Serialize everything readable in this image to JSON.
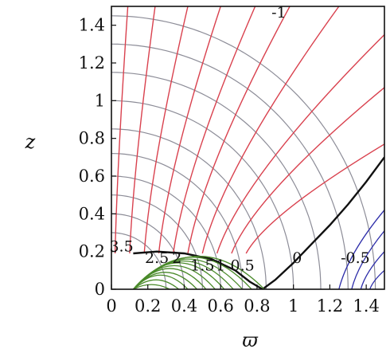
{
  "chart_data": {
    "type": "line",
    "xlabel": "ϖ",
    "ylabel": "z",
    "xlim": [
      0,
      1.5
    ],
    "ylim": [
      0,
      1.5
    ],
    "x_ticks": [
      {
        "value": 0,
        "label": "0"
      },
      {
        "value": 0.2,
        "label": "0.2"
      },
      {
        "value": 0.4,
        "label": "0.4"
      },
      {
        "value": 0.6,
        "label": "0.6"
      },
      {
        "value": 0.8,
        "label": "0.8"
      },
      {
        "value": 1.0,
        "label": "1"
      },
      {
        "value": 1.2,
        "label": "1.2"
      },
      {
        "value": 1.4,
        "label": "1.4"
      }
    ],
    "y_ticks": [
      {
        "value": 0,
        "label": "0"
      },
      {
        "value": 0.2,
        "label": "0.2"
      },
      {
        "value": 0.4,
        "label": "0.4"
      },
      {
        "value": 0.6,
        "label": "0.6"
      },
      {
        "value": 0.8,
        "label": "0.8"
      },
      {
        "value": 1.0,
        "label": "1"
      },
      {
        "value": 1.2,
        "label": "1.2"
      },
      {
        "value": 1.4,
        "label": "1.4"
      }
    ],
    "grid": false,
    "legend": "none",
    "colors": {
      "field_lines": "#d9414e",
      "equipotentials": "#8d8d98",
      "separatrix": "#111111",
      "inner_contours": "#4a8a2a",
      "outer_contours": "#2b2ba8"
    },
    "series": [
      {
        "style": "equipotentials",
        "radii": [
          0.3,
          0.4,
          0.5,
          0.6,
          0.72,
          0.85,
          1.0,
          1.15,
          1.3,
          1.45
        ]
      },
      {
        "style": "field_lines",
        "footpoints": [
          0.0,
          0.1,
          0.2,
          0.3,
          0.4,
          0.5,
          0.6,
          0.7,
          0.8,
          0.9
        ],
        "endpoints": [
          [
            0.09,
            1.5
          ],
          [
            0.24,
            1.5
          ],
          [
            0.42,
            1.5
          ],
          [
            0.6,
            1.5
          ],
          [
            0.79,
            1.5
          ],
          [
            0.98,
            1.5
          ],
          [
            1.25,
            1.5
          ],
          [
            1.5,
            1.35
          ],
          [
            1.5,
            1.07
          ],
          [
            1.5,
            0.77
          ]
        ]
      },
      {
        "style": "separatrix",
        "points": [
          [
            0.12,
            0.19
          ],
          [
            0.25,
            0.2
          ],
          [
            0.4,
            0.19
          ],
          [
            0.55,
            0.16
          ],
          [
            0.68,
            0.1
          ],
          [
            0.76,
            0.04
          ],
          [
            0.83,
            0.0
          ],
          [
            0.9,
            0.05
          ],
          [
            1.0,
            0.14
          ],
          [
            1.1,
            0.24
          ],
          [
            1.2,
            0.34
          ],
          [
            1.3,
            0.45
          ],
          [
            1.4,
            0.57
          ],
          [
            1.5,
            0.7
          ]
        ]
      },
      {
        "style": "inner_contours",
        "arcs": [
          [
            0.2,
            0.025
          ],
          [
            0.25,
            0.05
          ],
          [
            0.3,
            0.075
          ],
          [
            0.35,
            0.09
          ],
          [
            0.4,
            0.11
          ],
          [
            0.45,
            0.125
          ],
          [
            0.5,
            0.14
          ],
          [
            0.55,
            0.15
          ],
          [
            0.6,
            0.16
          ],
          [
            0.65,
            0.17
          ],
          [
            0.72,
            0.175
          ]
        ]
      },
      {
        "style": "outer_contours",
        "lines": [
          [
            1.25,
            0.0,
            1.5,
            0.42
          ],
          [
            1.32,
            0.0,
            1.5,
            0.31
          ],
          [
            1.37,
            0.0,
            1.5,
            0.2
          ],
          [
            1.42,
            0.0,
            1.5,
            0.1
          ]
        ]
      }
    ],
    "annotations": [
      {
        "text": "-1",
        "x": 0.92,
        "y": 1.44
      },
      {
        "text": "3.5",
        "x": 0.055,
        "y": 0.2
      },
      {
        "text": "2.5",
        "x": 0.25,
        "y": 0.14
      },
      {
        "text": "2",
        "x": 0.36,
        "y": 0.14
      },
      {
        "text": "1.5",
        "x": 0.5,
        "y": 0.1
      },
      {
        "text": "1",
        "x": 0.6,
        "y": 0.1
      },
      {
        "text": "0.5",
        "x": 0.72,
        "y": 0.1
      },
      {
        "text": "0",
        "x": 1.02,
        "y": 0.14
      },
      {
        "text": "-0.5",
        "x": 1.34,
        "y": 0.14
      }
    ]
  }
}
